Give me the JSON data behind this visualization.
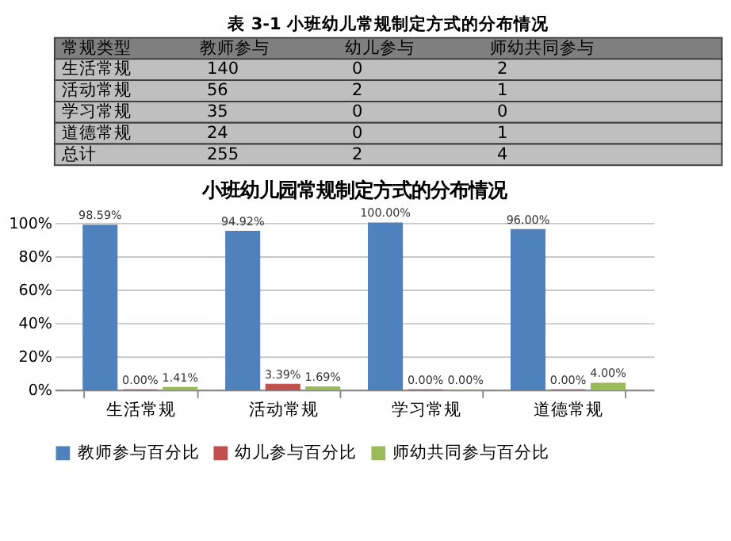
{
  "chart_data": [
    {
      "type": "heatmap",
      "data_labels": true,
      "title": "表 3-1  小班幼儿常规制定方式的分布情况",
      "ylabel": "常规类型",
      "categories": [
        "教师参与",
        "幼儿参与",
        "师幼共同参与"
      ],
      "y_categories": [
        "生活常规",
        "活动常规",
        "学习常规",
        "道德常规",
        "总计"
      ],
      "cells": [
        [
          140,
          0,
          2
        ],
        [
          56,
          2,
          1
        ],
        [
          35,
          0,
          0
        ],
        [
          24,
          0,
          1
        ],
        [
          255,
          2,
          4
        ]
      ]
    },
    {
      "type": "bar",
      "title": "小班幼儿园常规制定方式的分布情况",
      "categories": [
        "生活常规",
        "活动常规",
        "学习常规",
        "道德常规"
      ],
      "series": [
        {
          "name": "教师参与百分比",
          "color": "#4f81bd",
          "values": [
            98.59,
            94.92,
            100.0,
            96.0
          ],
          "value_labels": [
            "98.59%",
            "94.92%",
            "100.00%",
            "96.00%"
          ]
        },
        {
          "name": "幼儿参与百分比",
          "color": "#c0504d",
          "values": [
            0.0,
            3.39,
            0.0,
            0.0
          ],
          "value_labels": [
            "0.00%",
            "3.39%",
            "0.00%",
            "0.00%"
          ]
        },
        {
          "name": "师幼共同参与百分比",
          "color": "#9bbb59",
          "values": [
            1.41,
            1.69,
            0.0,
            4.0
          ],
          "value_labels": [
            "1.41%",
            "1.69%",
            "0.00%",
            "4.00%"
          ]
        }
      ],
      "ylim": [
        0,
        100
      ],
      "yticks": [
        {
          "value": 0,
          "label": "0%"
        },
        {
          "value": 20,
          "label": "20%"
        },
        {
          "value": 40,
          "label": "40%"
        },
        {
          "value": 60,
          "label": "60%"
        },
        {
          "value": 80,
          "label": "80%"
        },
        {
          "value": 100,
          "label": "100%"
        }
      ],
      "grid": "y",
      "legend": "bottom"
    }
  ]
}
